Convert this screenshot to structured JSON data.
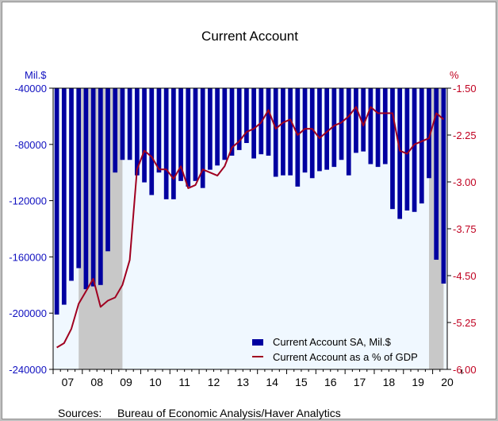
{
  "chart_data": {
    "type": "bar",
    "title": "Current Account",
    "left_axis": {
      "unit_label": "Mil.$",
      "range": [
        -240000,
        -40000
      ],
      "ticks": [
        -40000,
        -80000,
        -120000,
        -160000,
        -200000,
        -240000
      ],
      "tick_labels": [
        "-40000",
        "-80000",
        "-120000",
        "-160000",
        "-200000",
        "-240000"
      ]
    },
    "right_axis": {
      "unit_label": "%",
      "range": [
        -6.0,
        -1.5
      ],
      "ticks": [
        -1.5,
        -2.25,
        -3.0,
        -3.75,
        -4.5,
        -5.25,
        -6.0
      ],
      "tick_labels": [
        "-1.50",
        "-2.25",
        "-3.00",
        "-3.75",
        "-4.50",
        "-5.25",
        "-6.00"
      ]
    },
    "x_axis": {
      "labels": [
        "07",
        "08",
        "09",
        "10",
        "11",
        "12",
        "13",
        "14",
        "15",
        "16",
        "17",
        "18",
        "19",
        "20"
      ],
      "start_year": 2007
    },
    "recessions": [
      {
        "start": "2007-Q4",
        "end": "2009-Q2"
      },
      {
        "start": "2019-Q4",
        "end": "2020-Q2"
      }
    ],
    "series": [
      {
        "name": "Current Account SA, Mil.$",
        "axis": "left",
        "kind": "bar",
        "color": "#0000a0",
        "quarters": [
          "2007-Q1",
          "2007-Q2",
          "2007-Q3",
          "2007-Q4",
          "2008-Q1",
          "2008-Q2",
          "2008-Q3",
          "2008-Q4",
          "2009-Q1",
          "2009-Q2",
          "2009-Q3",
          "2009-Q4",
          "2010-Q1",
          "2010-Q2",
          "2010-Q3",
          "2010-Q4",
          "2011-Q1",
          "2011-Q2",
          "2011-Q3",
          "2011-Q4",
          "2012-Q1",
          "2012-Q2",
          "2012-Q3",
          "2012-Q4",
          "2013-Q1",
          "2013-Q2",
          "2013-Q3",
          "2013-Q4",
          "2014-Q1",
          "2014-Q2",
          "2014-Q3",
          "2014-Q4",
          "2015-Q1",
          "2015-Q2",
          "2015-Q3",
          "2015-Q4",
          "2016-Q1",
          "2016-Q2",
          "2016-Q3",
          "2016-Q4",
          "2017-Q1",
          "2017-Q2",
          "2017-Q3",
          "2017-Q4",
          "2018-Q1",
          "2018-Q2",
          "2018-Q3",
          "2018-Q4",
          "2019-Q1",
          "2019-Q2",
          "2019-Q3",
          "2019-Q4",
          "2020-Q1",
          "2020-Q2"
        ],
        "values": [
          -201000,
          -194000,
          -177000,
          -168000,
          -183000,
          -181000,
          -180000,
          -156000,
          -100000,
          -91000,
          -91000,
          -102000,
          -107000,
          -116000,
          -100000,
          -119000,
          -119000,
          -106000,
          -110000,
          -106000,
          -111000,
          -98000,
          -95000,
          -91000,
          -88000,
          -84000,
          -79000,
          -90000,
          -87000,
          -88000,
          -103000,
          -102000,
          -102000,
          -110000,
          -100000,
          -104000,
          -99000,
          -98000,
          -96000,
          -91000,
          -102000,
          -86000,
          -85000,
          -94000,
          -96000,
          -94000,
          -126000,
          -133000,
          -127000,
          -128000,
          -122000,
          -104000,
          -162000,
          -179000
        ]
      },
      {
        "name": "Current Account as a % of GDP",
        "axis": "right",
        "kind": "line",
        "color": "#a00020",
        "values": [
          -5.65,
          -5.58,
          -5.35,
          -4.95,
          -4.75,
          -4.55,
          -5.0,
          -4.9,
          -4.85,
          -4.65,
          -4.25,
          -2.8,
          -2.5,
          -2.6,
          -2.8,
          -2.8,
          -2.95,
          -2.75,
          -3.1,
          -3.05,
          -2.8,
          -2.85,
          -2.9,
          -2.75,
          -2.45,
          -2.35,
          -2.2,
          -2.15,
          -2.05,
          -1.85,
          -2.15,
          -2.05,
          -2.0,
          -2.25,
          -2.15,
          -2.15,
          -2.3,
          -2.2,
          -2.1,
          -2.05,
          -1.95,
          -1.8,
          -2.1,
          -1.8,
          -1.9,
          -1.9,
          -1.9,
          -2.5,
          -2.55,
          -2.4,
          -2.35,
          -2.3,
          -1.9,
          -2.0
        ]
      }
    ],
    "legend": {
      "placement": "bottom-right",
      "items": [
        "Current Account SA, Mil.$",
        "Current Account as a % of GDP"
      ]
    },
    "grid": false
  },
  "footer": {
    "sources_label": "Sources:",
    "sources_text": "Bureau of Economic Analysis/Haver Analytics"
  }
}
